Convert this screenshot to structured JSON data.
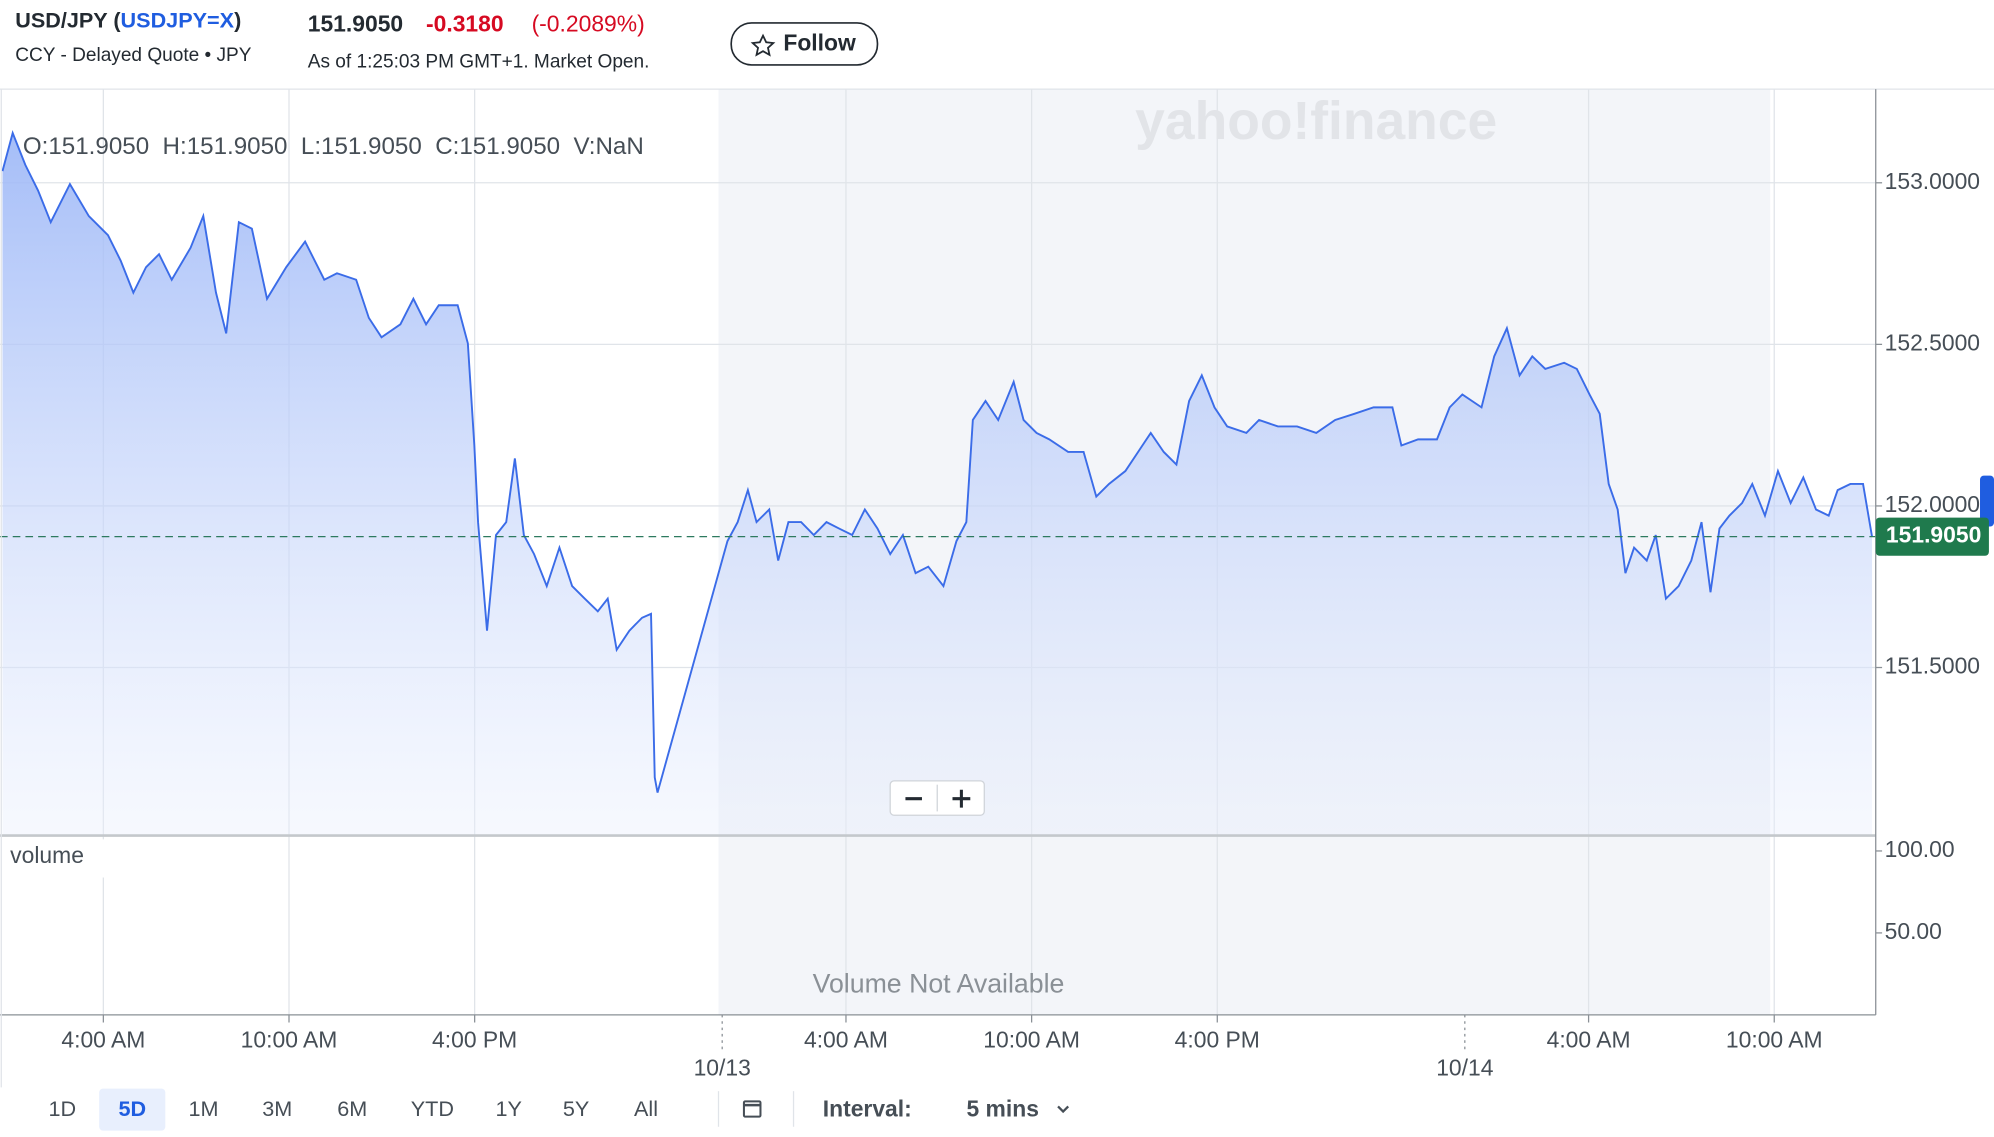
{
  "header": {
    "title_prefix": "USD/JPY (",
    "symbol": "USDJPY=X",
    "title_suffix": ")",
    "subtitle": "CCY - Delayed Quote • JPY",
    "price": "151.9050",
    "change": "-0.3180",
    "change_pct": "(-0.2089%)",
    "as_of": "As of 1:25:03 PM GMT+1. Market Open.",
    "follow": "Follow"
  },
  "chart_data": {
    "type": "line",
    "watermark": "yahoo!finance",
    "ohlc": "O:151.9050  H:151.9050  L:151.9050  C:151.9050  V:NaN",
    "color": "#3b6ce8",
    "x": [
      0.74,
      1.07,
      1.48,
      1.89,
      2.3,
      2.92,
      3.53,
      4.15,
      4.56,
      4.97,
      5.38,
      5.8,
      6.21,
      6.82,
      7.23,
      7.64,
      7.97,
      8.38,
      8.8,
      9.29,
      9.91,
      10.52,
      11.14,
      11.55,
      12.17,
      12.58,
      12.99,
      13.6,
      14.02,
      14.43,
      14.84,
      15.45,
      15.78,
      15.99,
      16.11,
      16.4,
      16.69,
      17.02,
      17.3,
      17.59,
      17.92,
      18.33,
      18.74,
      19.15,
      19.56,
      19.98,
      20.3,
      20.59,
      21.0,
      21.41,
      21.7,
      21.82,
      21.91,
      24.17,
      24.5,
      24.83,
      25.11,
      25.52,
      25.81,
      26.14,
      26.55,
      26.96,
      27.37,
      27.78,
      28.2,
      28.61,
      29.02,
      29.43,
      29.84,
      30.25,
      30.66,
      31.15,
      31.57,
      31.89,
      32.1,
      32.51,
      32.92,
      33.42,
      33.74,
      34.16,
      34.57,
      35.18,
      35.68,
      36.09,
      36.5,
      37.03,
      37.44,
      37.85,
      38.27,
      38.68,
      39.09,
      39.5,
      39.91,
      40.32,
      40.94,
      41.35,
      41.96,
      42.58,
      43.2,
      43.81,
      44.43,
      45.05,
      45.66,
      45.95,
      46.49,
      47.1,
      47.51,
      47.92,
      48.54,
      48.95,
      49.36,
      49.77,
      50.18,
      50.6,
      51.21,
      51.62,
      52.03,
      52.36,
      52.65,
      52.94,
      53.19,
      53.47,
      53.88,
      54.17,
      54.5,
      54.91,
      55.32,
      55.65,
      55.94,
      56.23,
      56.55,
      56.96,
      57.29,
      57.7,
      58.12,
      58.53,
      58.94,
      59.35,
      59.76,
      60.05,
      60.46,
      60.87,
      61.16
    ],
    "values": [
      153.036,
      153.154,
      153.055,
      152.976,
      152.878,
      152.996,
      152.897,
      152.838,
      152.759,
      152.66,
      152.739,
      152.779,
      152.7,
      152.799,
      152.897,
      152.66,
      152.534,
      152.878,
      152.858,
      152.641,
      152.739,
      152.818,
      152.7,
      152.72,
      152.7,
      152.582,
      152.522,
      152.562,
      152.641,
      152.562,
      152.621,
      152.621,
      152.503,
      152.187,
      151.95,
      151.614,
      151.91,
      151.95,
      152.147,
      151.91,
      151.851,
      151.752,
      151.871,
      151.752,
      151.713,
      151.674,
      151.713,
      151.555,
      151.614,
      151.654,
      151.666,
      151.16,
      151.113,
      151.891,
      151.95,
      152.049,
      151.95,
      151.989,
      151.831,
      151.95,
      151.95,
      151.91,
      151.95,
      151.93,
      151.91,
      151.989,
      151.93,
      151.851,
      151.91,
      151.792,
      151.812,
      151.752,
      151.891,
      151.95,
      152.266,
      152.325,
      152.266,
      152.384,
      152.266,
      152.226,
      152.206,
      152.167,
      152.167,
      152.029,
      152.068,
      152.108,
      152.167,
      152.226,
      152.167,
      152.128,
      152.325,
      152.404,
      152.305,
      152.246,
      152.226,
      152.266,
      152.246,
      152.246,
      152.226,
      152.266,
      152.285,
      152.305,
      152.305,
      152.187,
      152.206,
      152.206,
      152.305,
      152.345,
      152.305,
      152.463,
      152.55,
      152.404,
      152.463,
      152.424,
      152.443,
      152.424,
      152.345,
      152.285,
      152.068,
      151.989,
      151.792,
      151.871,
      151.831,
      151.91,
      151.713,
      151.752,
      151.831,
      151.95,
      151.733,
      151.93,
      151.97,
      152.009,
      152.068,
      151.97,
      152.108,
      152.009,
      152.088,
      151.989,
      151.97,
      152.049,
      152.068,
      152.068,
      151.905
    ],
    "xlim": [
      0.66,
      61.28
    ],
    "ylim": [
      150.98,
      153.29
    ],
    "xticks": [
      {
        "value": 4,
        "label": "4:00 AM"
      },
      {
        "value": 10,
        "label": "10:00 AM"
      },
      {
        "value": 16,
        "label": "4:00 PM"
      },
      {
        "value": 28,
        "label": "4:00 AM"
      },
      {
        "value": 34,
        "label": "10:00 AM"
      },
      {
        "value": 40,
        "label": "4:00 PM"
      },
      {
        "value": 52,
        "label": "4:00 AM"
      },
      {
        "value": 58,
        "label": "10:00 AM"
      }
    ],
    "date_ticks": [
      {
        "value": 24,
        "label": "10/13"
      },
      {
        "value": 48,
        "label": "10/14"
      }
    ],
    "yticks": [
      {
        "value": 153,
        "label": "153.0000"
      },
      {
        "value": 152.5,
        "label": "152.5000"
      },
      {
        "value": 152,
        "label": "152.0000"
      },
      {
        "value": 151.5,
        "label": "151.5000"
      }
    ],
    "last_price": {
      "value": 151.905,
      "label": "151.9050"
    },
    "grid": true,
    "volume_panel": {
      "label": "volume",
      "message": "Volume Not Available",
      "ylim": [
        0,
        109.4
      ],
      "yticks": [
        {
          "value": 100,
          "label": "100.00"
        },
        {
          "value": 50,
          "label": "50.00"
        }
      ]
    }
  },
  "toolbar": {
    "ranges": [
      "1D",
      "5D",
      "1M",
      "3M",
      "6M",
      "YTD",
      "1Y",
      "5Y",
      "All"
    ],
    "selected": 1,
    "interval_label": "Interval:",
    "interval": "5 mins"
  }
}
